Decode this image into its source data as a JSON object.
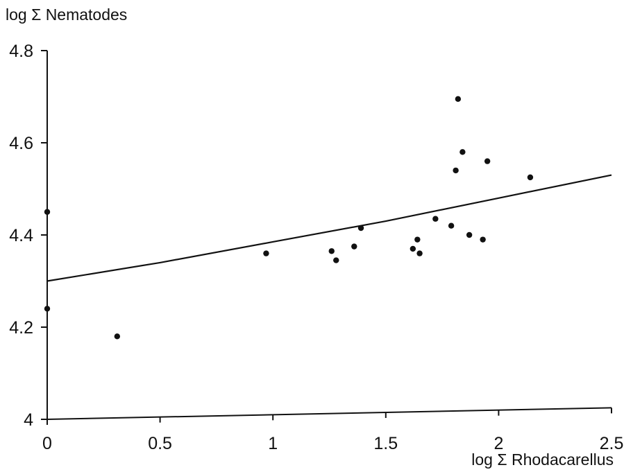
{
  "chart_data": {
    "type": "scatter",
    "title": "",
    "xlabel": "log Σ Rhodacarellus",
    "ylabel": "log Σ Nematodes",
    "xlim": [
      0,
      2.5
    ],
    "ylim": [
      4.0,
      4.8
    ],
    "x_ticks": [
      0,
      0.5,
      1,
      1.5,
      2,
      2.5
    ],
    "x_tick_labels": [
      "0",
      "0.5",
      "1",
      "1.5",
      "2",
      "2.5"
    ],
    "y_ticks": [
      4.0,
      4.2,
      4.4,
      4.6,
      4.8
    ],
    "y_tick_labels": [
      "4",
      "4.2",
      "4.4",
      "4.6",
      "4.8"
    ],
    "grid": false,
    "points": [
      {
        "x": 0.0,
        "y": 4.45
      },
      {
        "x": 0.0,
        "y": 4.24
      },
      {
        "x": 0.31,
        "y": 4.18
      },
      {
        "x": 0.97,
        "y": 4.36
      },
      {
        "x": 1.26,
        "y": 4.365
      },
      {
        "x": 1.28,
        "y": 4.345
      },
      {
        "x": 1.36,
        "y": 4.375
      },
      {
        "x": 1.39,
        "y": 4.415
      },
      {
        "x": 1.62,
        "y": 4.37
      },
      {
        "x": 1.64,
        "y": 4.39
      },
      {
        "x": 1.65,
        "y": 4.36
      },
      {
        "x": 1.72,
        "y": 4.435
      },
      {
        "x": 1.79,
        "y": 4.42
      },
      {
        "x": 1.81,
        "y": 4.54
      },
      {
        "x": 1.82,
        "y": 4.695
      },
      {
        "x": 1.84,
        "y": 4.58
      },
      {
        "x": 1.87,
        "y": 4.4
      },
      {
        "x": 1.93,
        "y": 4.39
      },
      {
        "x": 1.95,
        "y": 4.56
      },
      {
        "x": 2.14,
        "y": 4.525
      }
    ],
    "fit_line": [
      {
        "x": 0.0,
        "y": 4.3
      },
      {
        "x": 0.5,
        "y": 4.34
      },
      {
        "x": 1.0,
        "y": 4.385
      },
      {
        "x": 1.5,
        "y": 4.43
      },
      {
        "x": 2.0,
        "y": 4.48
      },
      {
        "x": 2.5,
        "y": 4.53
      }
    ],
    "bottom_line": [
      {
        "x": 0.0,
        "y": 4.0
      },
      {
        "x": 2.5,
        "y": 4.025
      }
    ]
  }
}
